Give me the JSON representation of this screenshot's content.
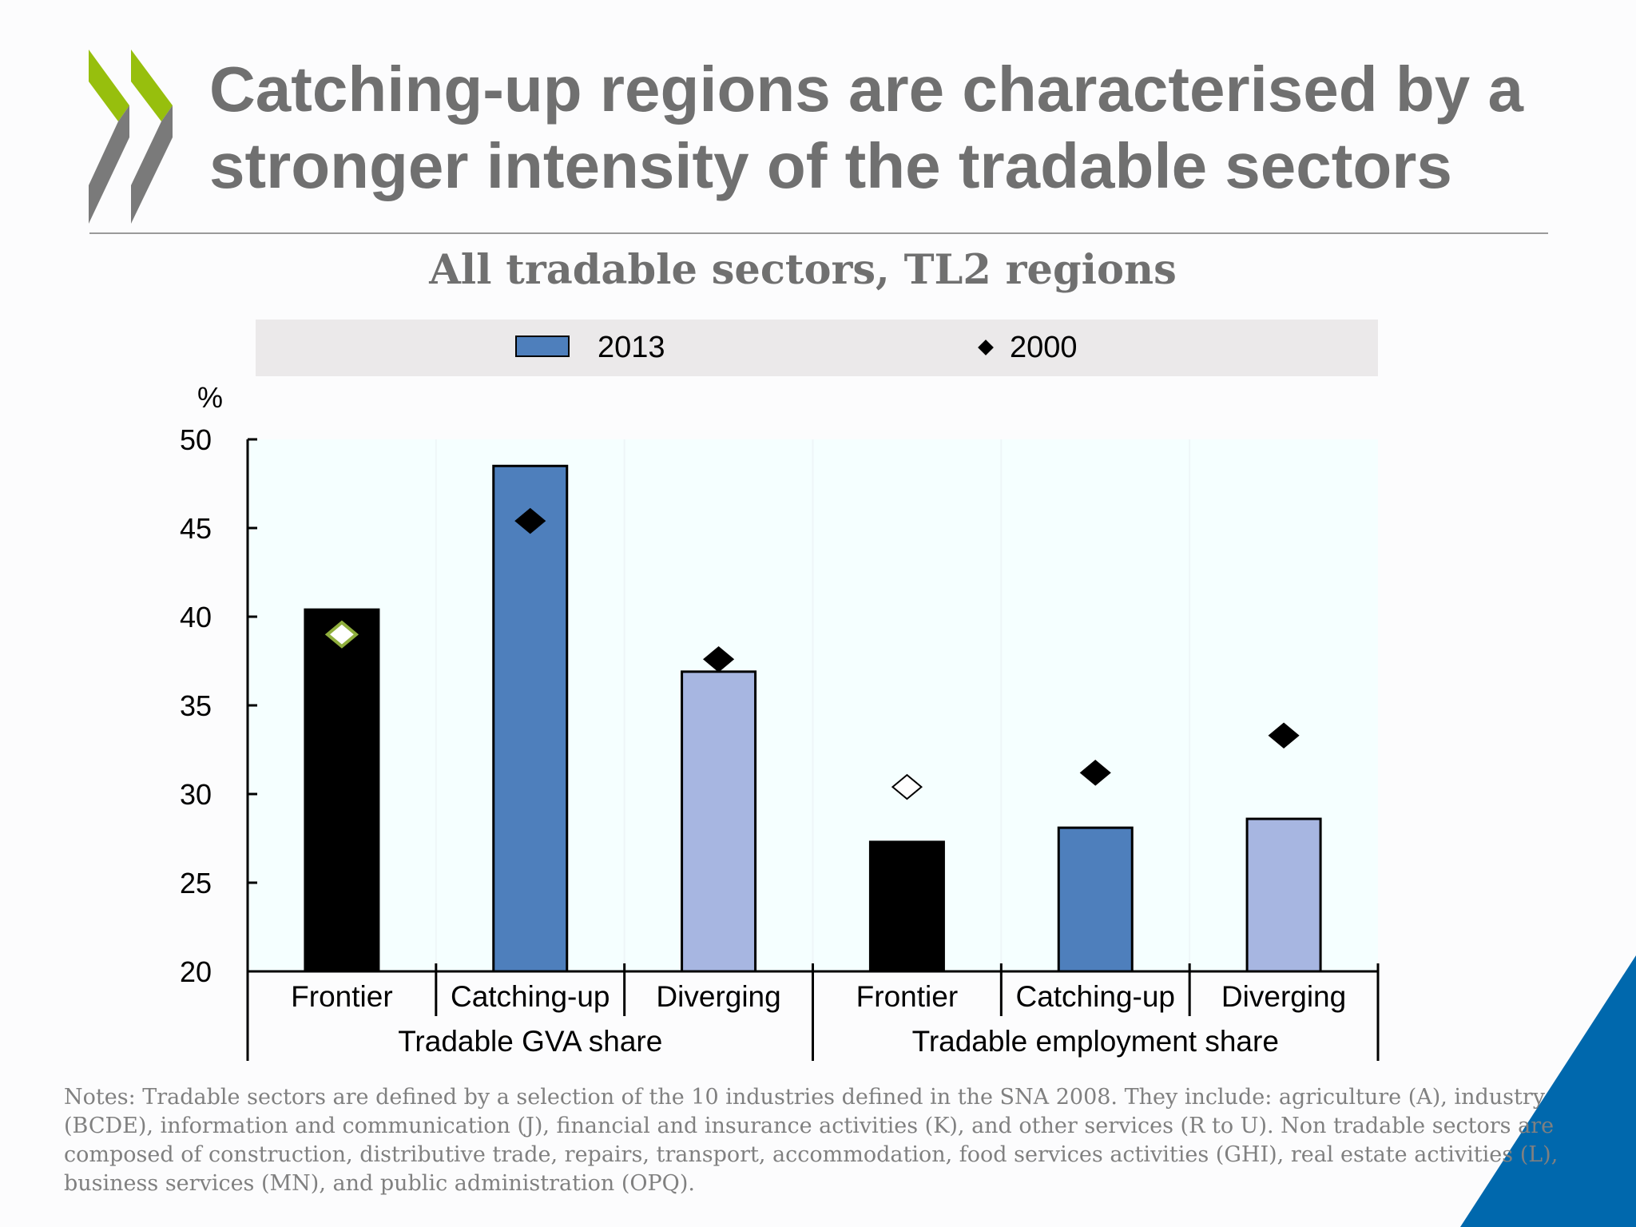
{
  "slide": {
    "title": "Catching-up regions are characterised by a stronger intensity of the tradable sectors",
    "notes": "Notes: Tradable sectors are defined by a selection of the 10 industries defined in the SNA 2008. They include: agriculture (A), industry (BCDE), information and communication (J), financial and insurance activities (K), and other services (R to U). Non tradable sectors are composed of construction, distributive trade, repairs, transport, accommodation, food services activities (GHI), real estate activities (L), business services (MN), and public administration (OPQ).",
    "colors": {
      "logo_green": "#97bf0d",
      "logo_gray": "#7a7a7a",
      "accent_blue": "#0068ad"
    }
  },
  "chart_data": {
    "type": "bar",
    "title": "All tradable sectors, TL2  regions",
    "ylabel": "%",
    "ylim": [
      20,
      50
    ],
    "yticks": [
      20,
      25,
      30,
      35,
      40,
      45,
      50
    ],
    "legend": {
      "placement": "top",
      "entries": [
        "2013",
        "2000"
      ]
    },
    "categories": [
      "Frontier",
      "Catching-up",
      "Diverging",
      "Frontier",
      "Catching-up",
      "Diverging"
    ],
    "groups": [
      {
        "label": "Tradable GVA share",
        "categories": [
          0,
          1,
          2
        ]
      },
      {
        "label": "Tradable employment share",
        "categories": [
          3,
          4,
          5
        ]
      }
    ],
    "series": [
      {
        "name": "2013",
        "type": "bar",
        "values": [
          40.4,
          48.5,
          36.9,
          27.3,
          28.1,
          28.6
        ]
      },
      {
        "name": "2000",
        "type": "marker",
        "values": [
          39.0,
          45.4,
          37.6,
          30.4,
          31.2,
          33.3
        ]
      }
    ],
    "bar_colors": [
      "#000000",
      "#4e7fbc",
      "#a7b6e1",
      "#000000",
      "#4e7fbc",
      "#a7b6e1"
    ],
    "marker_styles": [
      "hollow-green",
      "filled",
      "filled",
      "hollow",
      "filled",
      "filled"
    ]
  }
}
